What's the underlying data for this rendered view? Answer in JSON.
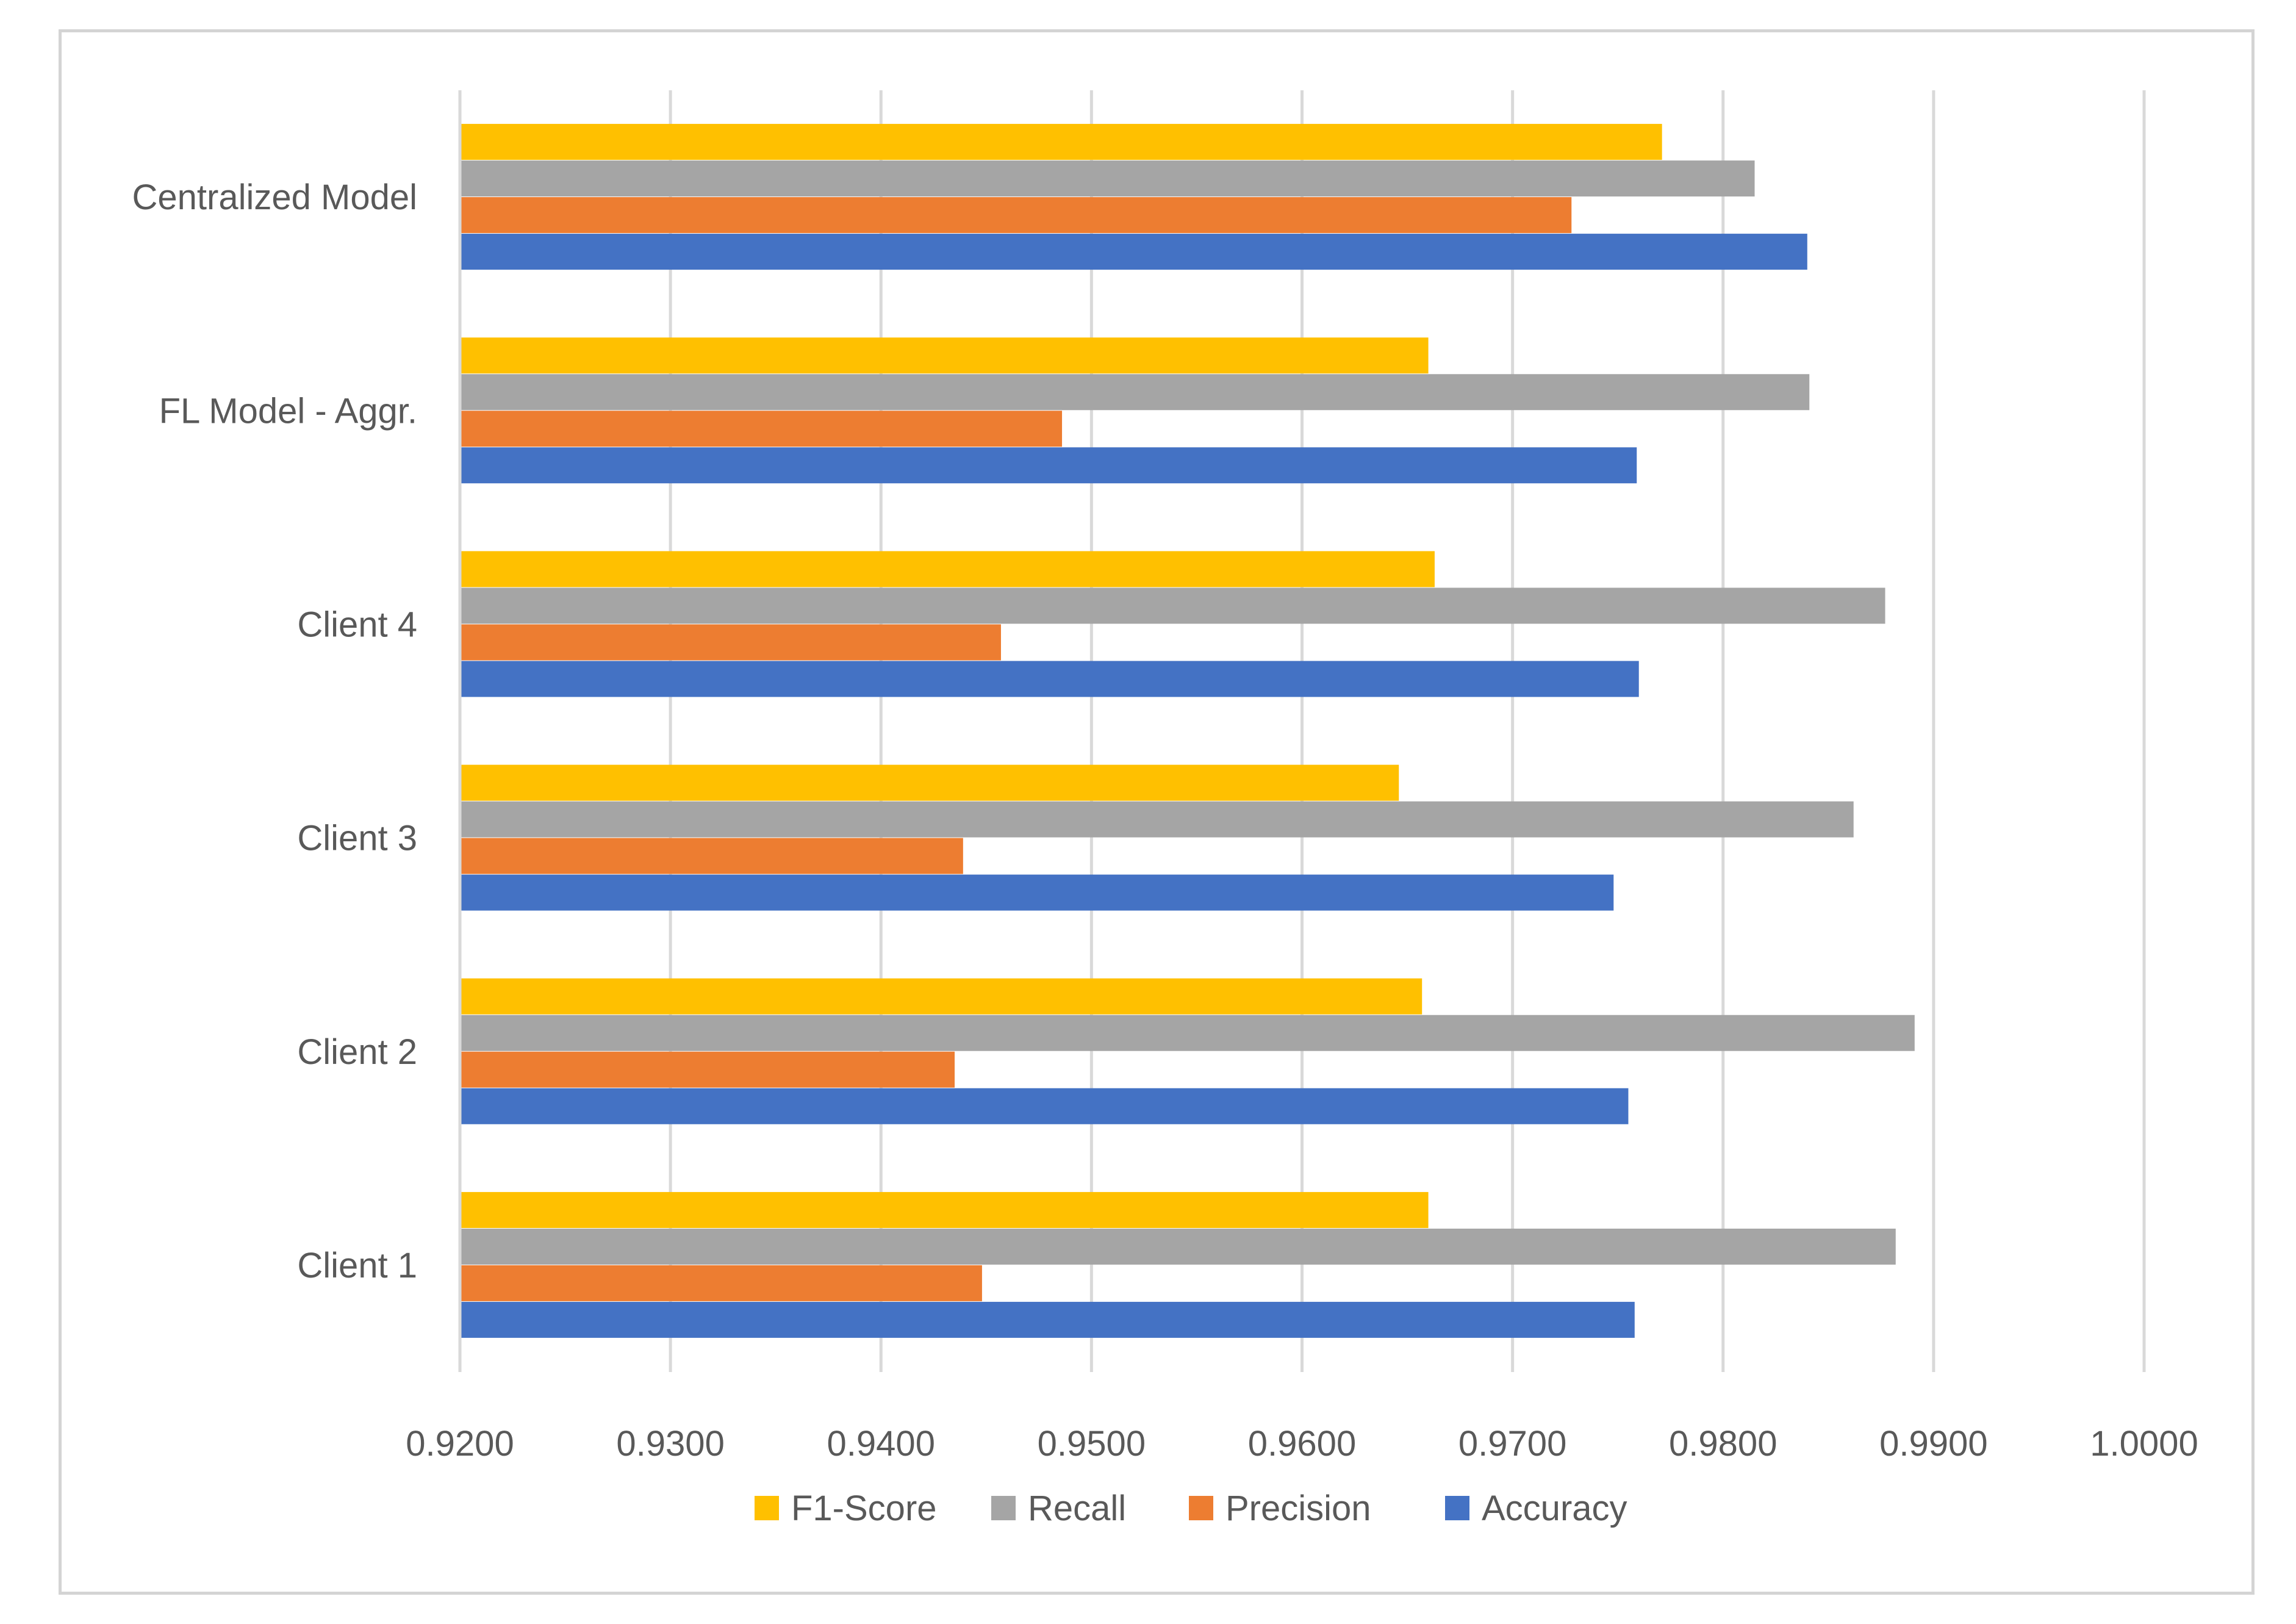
{
  "chart_data": {
    "type": "bar",
    "orientation": "horizontal",
    "categories": [
      "Client 1",
      "Client 2",
      "Client 3",
      "Client 4",
      "FL Model - Aggr.",
      "Centralized Model"
    ],
    "series": [
      {
        "name": "Accuracy",
        "color": "#4472c4",
        "values": [
          0.9758,
          0.9755,
          0.9748,
          0.976,
          0.9759,
          0.984
        ]
      },
      {
        "name": "Precision",
        "color": "#ed7d31",
        "values": [
          0.9448,
          0.9435,
          0.9439,
          0.9457,
          0.9486,
          0.9728
        ]
      },
      {
        "name": "Recall",
        "color": "#a5a5a5",
        "values": [
          0.9882,
          0.9891,
          0.9862,
          0.9877,
          0.9841,
          0.9815
        ]
      },
      {
        "name": "F1-Score",
        "color": "#ffc000",
        "values": [
          0.966,
          0.9657,
          0.9646,
          0.9663,
          0.966,
          0.9771
        ]
      }
    ],
    "legend_order": [
      "F1-Score",
      "Recall",
      "Precision",
      "Accuracy"
    ],
    "xlim": [
      0.92,
      1.0
    ],
    "xticks": [
      "0.9200",
      "0.9300",
      "0.9400",
      "0.9500",
      "0.9600",
      "0.9700",
      "0.9800",
      "0.9900",
      "1.0000"
    ],
    "xtick_values": [
      0.92,
      0.93,
      0.94,
      0.95,
      0.96,
      0.97,
      0.98,
      0.99,
      1.0
    ],
    "title": "",
    "xlabel": "",
    "ylabel": "",
    "grid": "vertical",
    "legend_position": "bottom"
  }
}
